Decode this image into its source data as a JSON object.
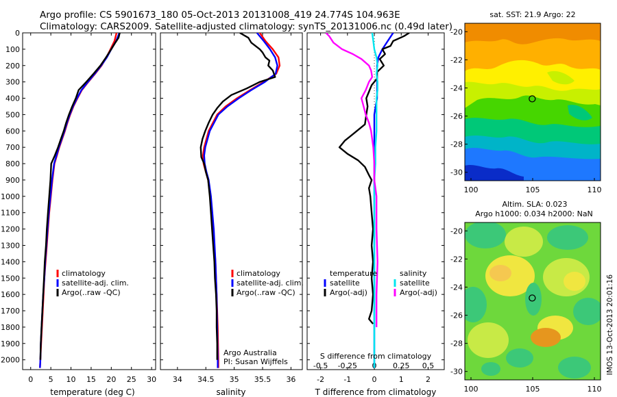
{
  "header": {
    "line1": "Argo profile: CS 5901673_180 05-Oct-2013 20131008_419 24.774S 104.963E",
    "line2": "Climatology: CARS2009. Satellite-adjusted climatology: synTS_20131006.nc (0.49d later)"
  },
  "colors": {
    "climatology": "#ff0000",
    "satellite_adj": "#0000ff",
    "argo": "#000000",
    "salinity_satellite": "#00e5ee",
    "salinity_argo": "#ff00ff"
  },
  "chart_data": [
    {
      "type": "line",
      "panel": "temperature",
      "xlabel": "temperature (deg C)",
      "xlim": [
        -2,
        31
      ],
      "xticks": [
        "0",
        "5",
        "10",
        "15",
        "20",
        "25",
        "30"
      ],
      "ylim": [
        2060,
        0
      ],
      "yticks": [
        "0",
        "100",
        "200",
        "300",
        "400",
        "500",
        "600",
        "700",
        "800",
        "900",
        "1000",
        "1100",
        "1200",
        "1300",
        "1400",
        "1500",
        "1600",
        "1700",
        "1800",
        "1900",
        "2000"
      ],
      "legend": [
        "climatology",
        "satellite-adj. clim.",
        "Argo(..raw -QC)"
      ],
      "series": [
        {
          "name": "climatology",
          "depth": [
            0,
            50,
            100,
            150,
            200,
            250,
            300,
            350,
            400,
            450,
            500,
            550,
            600,
            650,
            700,
            750,
            800,
            900,
            1000,
            1100,
            1200,
            1300,
            1400,
            1500,
            1600,
            1700,
            1800,
            1900,
            2000,
            2050
          ],
          "values": [
            21.3,
            20.8,
            19.8,
            18.8,
            17.6,
            16.0,
            14.3,
            12.7,
            11.6,
            10.6,
            9.8,
            9.1,
            8.5,
            7.8,
            7.1,
            6.5,
            5.9,
            5.4,
            5.0,
            4.6,
            4.3,
            4.0,
            3.7,
            3.4,
            3.2,
            3.0,
            2.8,
            2.6,
            2.4,
            2.3
          ]
        },
        {
          "name": "satellite-adj. clim.",
          "depth": [
            0,
            50,
            100,
            150,
            200,
            250,
            300,
            350,
            400,
            450,
            500,
            550,
            600,
            650,
            700,
            750,
            800,
            900,
            1000,
            1100,
            1200,
            1300,
            1400,
            1500,
            1600,
            1700,
            1800,
            1900,
            2000,
            2050
          ],
          "values": [
            22.0,
            21.2,
            20.0,
            18.9,
            17.5,
            15.9,
            14.2,
            12.6,
            11.5,
            10.5,
            9.7,
            9.0,
            8.4,
            7.7,
            7.0,
            6.4,
            5.8,
            5.3,
            4.9,
            4.5,
            4.2,
            3.9,
            3.6,
            3.4,
            3.1,
            2.9,
            2.7,
            2.5,
            2.4,
            2.3
          ]
        },
        {
          "name": "Argo(..raw -QC)",
          "depth": [
            0,
            30,
            60,
            100,
            150,
            200,
            250,
            300,
            350,
            400,
            450,
            500,
            550,
            600,
            650,
            700,
            750,
            800,
            900,
            1000,
            1100,
            1200,
            1300,
            1400,
            1500,
            1600,
            1700,
            1800,
            1900,
            2000
          ],
          "values": [
            22.1,
            21.8,
            21.0,
            20.0,
            18.7,
            17.3,
            15.6,
            13.8,
            11.9,
            11.2,
            10.3,
            9.5,
            8.8,
            8.2,
            7.5,
            6.8,
            6.0,
            5.1,
            4.9,
            4.6,
            4.3,
            4.0,
            3.8,
            3.5,
            3.3,
            3.1,
            2.9,
            2.7,
            2.5,
            2.4
          ]
        }
      ]
    },
    {
      "type": "line",
      "panel": "salinity",
      "xlabel": "salinity",
      "xlim": [
        33.7,
        36.2
      ],
      "xticks": [
        "34",
        "34.5",
        "35",
        "35.5",
        "36"
      ],
      "ylim": [
        2060,
        0
      ],
      "legend": [
        "climatology",
        "satellite-adj. clim.",
        "Argo(..raw -QC)"
      ],
      "annotation": [
        "Argo Australia",
        "PI: Susan Wijffels"
      ],
      "series": [
        {
          "name": "climatology",
          "depth": [
            0,
            50,
            100,
            150,
            200,
            250,
            300,
            350,
            400,
            450,
            500,
            600,
            700,
            750,
            800,
            850,
            900,
            1000,
            1200,
            1400,
            1600,
            1800,
            2000,
            2050
          ],
          "values": [
            35.45,
            35.55,
            35.68,
            35.78,
            35.8,
            35.74,
            35.52,
            35.28,
            35.05,
            34.85,
            34.7,
            34.55,
            34.47,
            34.45,
            34.46,
            34.5,
            34.54,
            34.58,
            34.63,
            34.67,
            34.69,
            34.71,
            34.72,
            34.72
          ]
        },
        {
          "name": "satellite-adj. clim.",
          "depth": [
            0,
            50,
            100,
            150,
            200,
            250,
            300,
            350,
            400,
            450,
            500,
            600,
            700,
            750,
            800,
            850,
            900,
            1000,
            1200,
            1400,
            1600,
            1800,
            2000,
            2050
          ],
          "values": [
            35.4,
            35.52,
            35.63,
            35.72,
            35.76,
            35.73,
            35.54,
            35.3,
            35.08,
            34.88,
            34.72,
            34.57,
            34.49,
            34.47,
            34.48,
            34.51,
            34.55,
            34.59,
            34.64,
            34.67,
            34.69,
            34.7,
            34.71,
            34.71
          ]
        },
        {
          "name": "Argo(..raw -QC)",
          "depth": [
            0,
            30,
            60,
            100,
            120,
            150,
            170,
            200,
            230,
            270,
            300,
            340,
            380,
            420,
            460,
            500,
            550,
            600,
            650,
            700,
            760,
            800,
            850,
            900,
            1000,
            1100,
            1200,
            1300,
            1400,
            1500,
            1600,
            1700,
            1800,
            1900,
            2000
          ],
          "values": [
            35.1,
            35.25,
            35.3,
            35.45,
            35.5,
            35.55,
            35.62,
            35.6,
            35.68,
            35.72,
            35.45,
            35.22,
            34.95,
            34.8,
            34.7,
            34.62,
            34.55,
            34.49,
            34.44,
            34.41,
            34.42,
            34.47,
            34.5,
            34.54,
            34.57,
            34.59,
            34.61,
            34.63,
            34.65,
            34.66,
            34.68,
            34.69,
            34.69,
            34.7,
            34.7
          ]
        }
      ]
    },
    {
      "type": "line",
      "panel": "difference",
      "xlabel": "T difference from climatology",
      "xlabel_top": "S difference from climatology",
      "xlim": [
        -2.5,
        2.6
      ],
      "xticks": [
        "-2",
        "-1",
        "0",
        "1",
        "2"
      ],
      "xticks_top": [
        "-0.5",
        "-0.25",
        "0",
        "0.25",
        "0.5"
      ],
      "ylim": [
        2060,
        0
      ],
      "legend_left_title": "temperature",
      "legend_right_title": "salinity",
      "legend_left": [
        "satellite",
        "Argo(-adj)"
      ],
      "legend_right": [
        "satellite",
        "Argo(-adj)"
      ],
      "series": [
        {
          "name": "satellite",
          "group": "temperature",
          "depth": [
            0,
            50,
            100,
            150,
            200,
            250,
            300,
            350,
            400,
            500,
            600,
            700,
            800,
            900,
            1000,
            1200,
            1400,
            1600,
            1800,
            2000,
            2050
          ],
          "values": [
            0.7,
            0.5,
            0.3,
            0.15,
            0.1,
            0.1,
            0.1,
            0.1,
            0.1,
            0.0,
            0.0,
            0.0,
            0.0,
            0.0,
            0.0,
            0.0,
            0.0,
            0.0,
            0.0,
            0.0,
            0.0
          ]
        },
        {
          "name": "Argo(-adj)",
          "group": "temperature",
          "depth": [
            0,
            20,
            50,
            80,
            100,
            130,
            160,
            200,
            240,
            280,
            320,
            360,
            400,
            450,
            500,
            560,
            620,
            660,
            700,
            740,
            780,
            820,
            870,
            900,
            950,
            1000,
            1100,
            1200,
            1300,
            1400,
            1500,
            1600,
            1700,
            1750,
            1780
          ],
          "values": [
            1.3,
            1.1,
            0.7,
            0.6,
            0.3,
            0.4,
            0.2,
            0.35,
            0.1,
            0.1,
            -0.1,
            -0.2,
            -0.3,
            -0.25,
            -0.3,
            -0.35,
            -0.8,
            -1.1,
            -1.3,
            -1.0,
            -0.6,
            -0.35,
            -0.2,
            -0.1,
            -0.2,
            -0.15,
            -0.1,
            -0.05,
            -0.1,
            -0.05,
            -0.1,
            -0.05,
            -0.1,
            -0.2,
            -0.05
          ]
        },
        {
          "name": "satellite",
          "group": "salinity",
          "depth": [
            0,
            50,
            100,
            150,
            200,
            250,
            300,
            350,
            400,
            500,
            600,
            700,
            800,
            900,
            1000,
            1200,
            1400,
            1600,
            1800,
            2000,
            2050
          ],
          "values": [
            -0.02,
            -0.01,
            0.0,
            0.02,
            0.03,
            0.02,
            0.03,
            0.03,
            0.02,
            0.02,
            0.02,
            0.01,
            0.01,
            0.0,
            0.0,
            0.0,
            0.0,
            0.0,
            0.0,
            0.0,
            0.0
          ]
        },
        {
          "name": "Argo(-adj)",
          "group": "salinity",
          "depth": [
            0,
            20,
            60,
            100,
            130,
            160,
            200,
            230,
            270,
            300,
            350,
            400,
            450,
            500,
            550,
            600,
            650,
            700,
            800,
            900,
            1000,
            1200,
            1400,
            1600,
            1800
          ],
          "values": [
            -0.45,
            -0.42,
            -0.38,
            -0.3,
            -0.2,
            -0.12,
            -0.05,
            -0.03,
            -0.02,
            -0.05,
            -0.08,
            -0.12,
            -0.1,
            -0.08,
            -0.05,
            -0.03,
            -0.02,
            -0.01,
            0.0,
            0.0,
            0.02,
            0.02,
            0.03,
            0.02,
            0.02
          ]
        }
      ]
    },
    {
      "type": "heatmap",
      "panel": "sst-map",
      "title": "sat. SST: 21.9 Argo: 22",
      "xlim": [
        99.5,
        110.5
      ],
      "ylim": [
        -30.6,
        -19.4
      ],
      "xticks": [
        "100",
        "105",
        "110"
      ],
      "yticks": [
        "-20",
        "-22",
        "-24",
        "-26",
        "-28",
        "-30"
      ],
      "marker": {
        "lon": 104.963,
        "lat": -24.774
      },
      "regions": [
        {
          "band_lat": [
            -19.4,
            -21.5
          ],
          "color": "#f08c00",
          "label": "warm"
        },
        {
          "band_lat": [
            -21.5,
            -23.0
          ],
          "color": "#ffb000"
        },
        {
          "band_lat": [
            -23.0,
            -25.0
          ],
          "color": "#c8f000"
        },
        {
          "band_lat": [
            -25.0,
            -27.0
          ],
          "color": "#46d600"
        },
        {
          "band_lat": [
            -27.0,
            -28.6
          ],
          "color": "#00c8a0"
        },
        {
          "band_lat": [
            -28.6,
            -30.6
          ],
          "color": "#1e78ff"
        }
      ]
    },
    {
      "type": "heatmap",
      "panel": "sla-map",
      "title": "Altim. SLA: 0.023",
      "subtitle": "Argo h1000: 0.034 h2000: NaN",
      "xlim": [
        99.5,
        110.5
      ],
      "ylim": [
        -30.6,
        -19.4
      ],
      "xticks": [
        "100",
        "105",
        "110"
      ],
      "yticks": [
        "-20",
        "-22",
        "-24",
        "-26",
        "-28",
        "-30"
      ],
      "marker": {
        "lon": 104.963,
        "lat": -24.774
      }
    }
  ],
  "stamp": "IMOS 13-Oct-2013 20:01:16"
}
